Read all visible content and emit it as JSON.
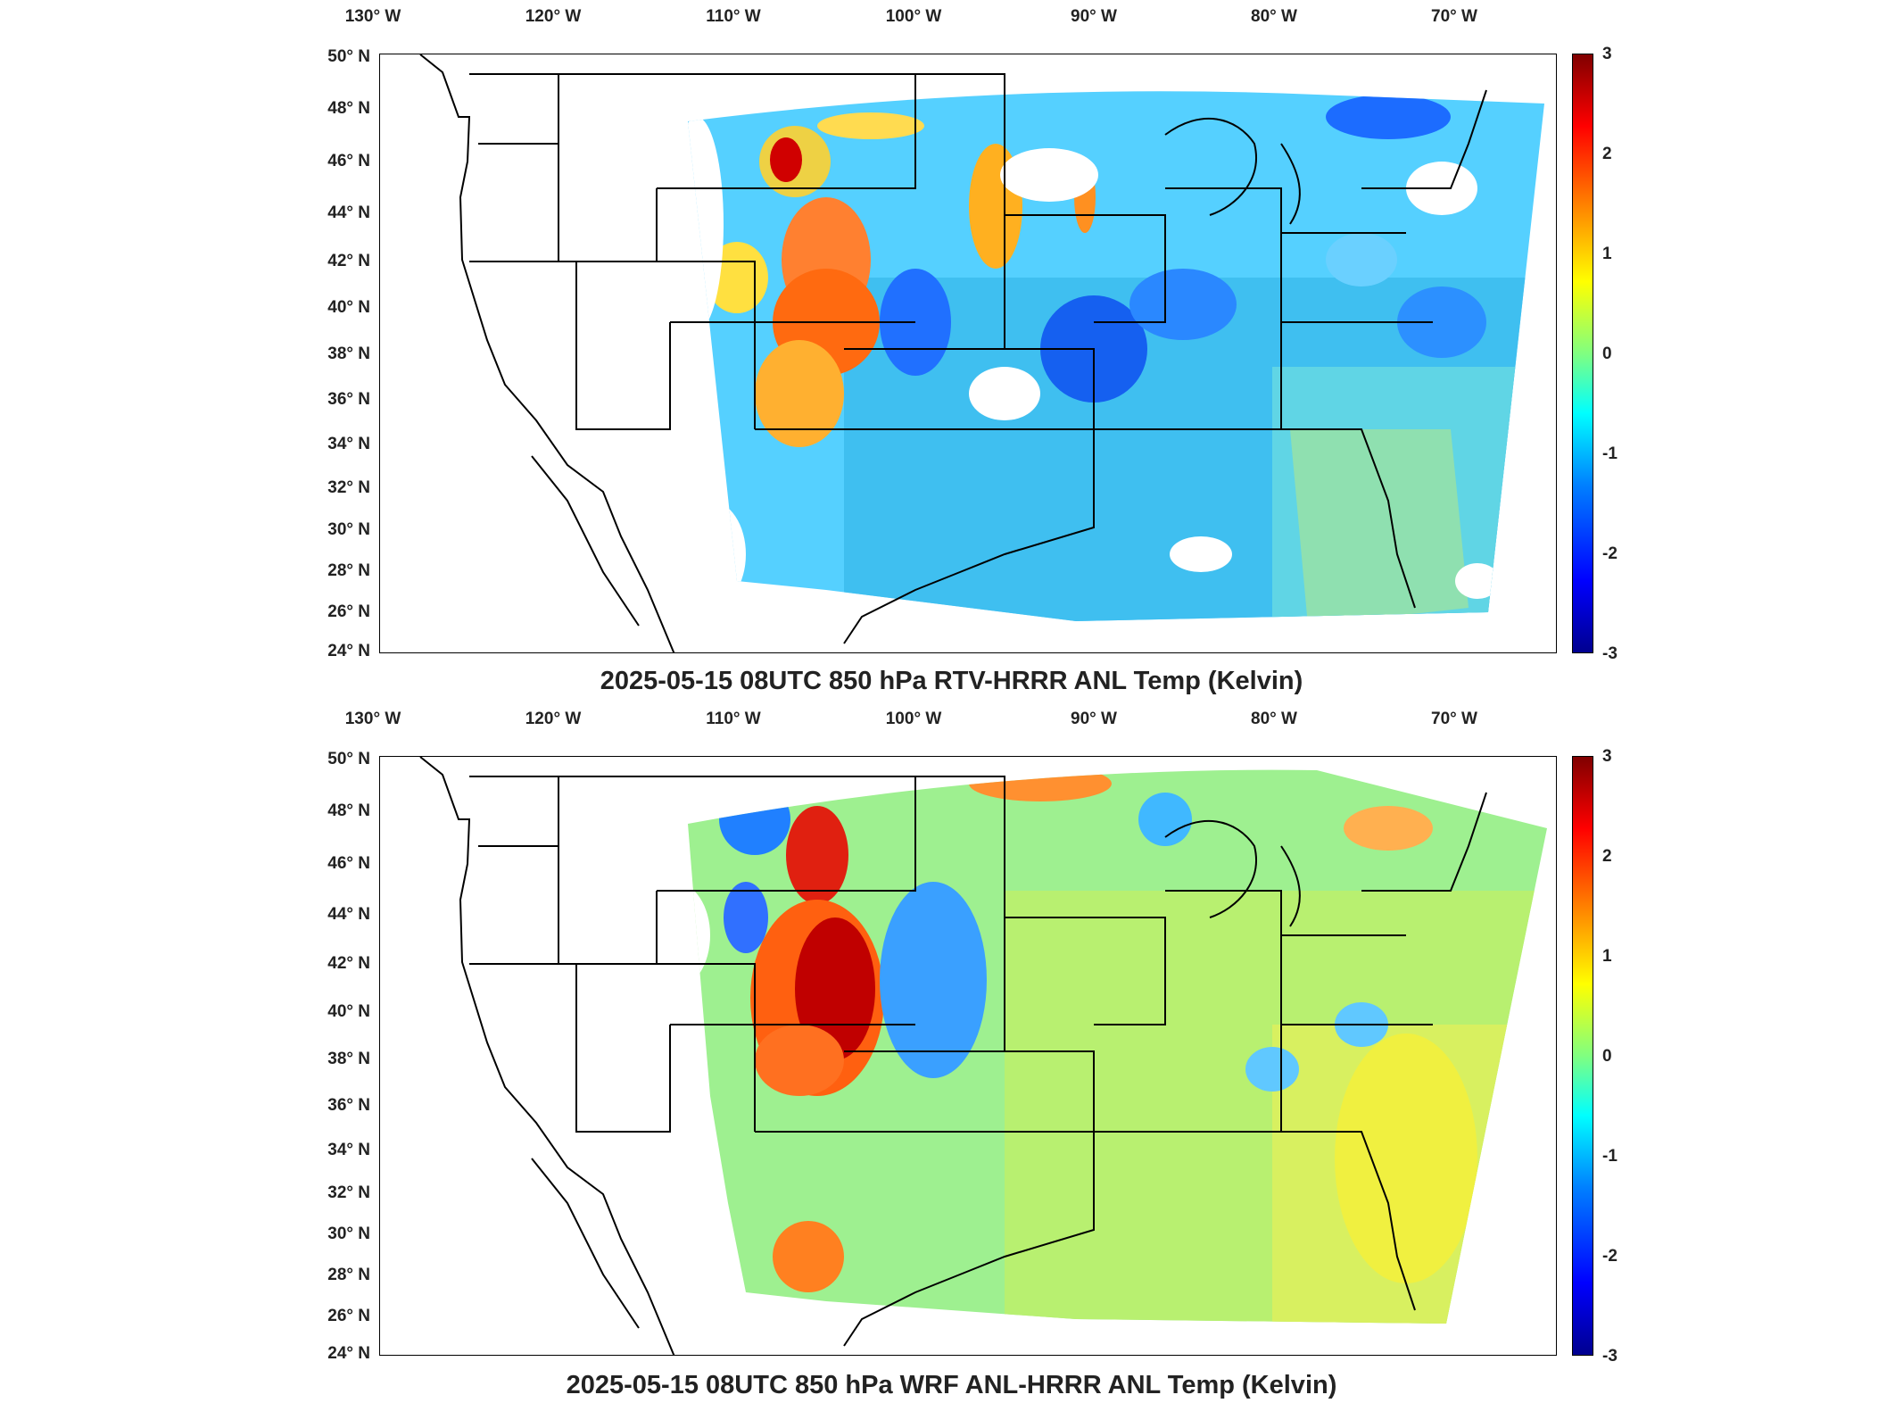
{
  "lon_labels": [
    "130° W",
    "120° W",
    "110° W",
    "100° W",
    "90° W",
    "80° W",
    "70° W"
  ],
  "lat_labels": [
    "50° N",
    "48° N",
    "46° N",
    "44° N",
    "42° N",
    "40° N",
    "38° N",
    "36° N",
    "34° N",
    "32° N",
    "30° N",
    "28° N",
    "26° N",
    "24° N"
  ],
  "colorbar": {
    "min": -3,
    "max": 3,
    "ticks": [
      "3",
      "2",
      "1",
      "0",
      "-1",
      "-2",
      "-3"
    ],
    "colormap": "jet",
    "colors": [
      "#00008f",
      "#0000ff",
      "#0080ff",
      "#00ffff",
      "#80ff80",
      "#ffff00",
      "#ff8000",
      "#ff0000",
      "#800000"
    ]
  },
  "panels": [
    {
      "title": "2025-05-15 08UTC 850 hPa RTV-HRRR ANL Temp (Kelvin)"
    },
    {
      "title": "2025-05-15 08UTC 850 hPa WRF ANL-HRRR ANL Temp (Kelvin)"
    }
  ]
}
